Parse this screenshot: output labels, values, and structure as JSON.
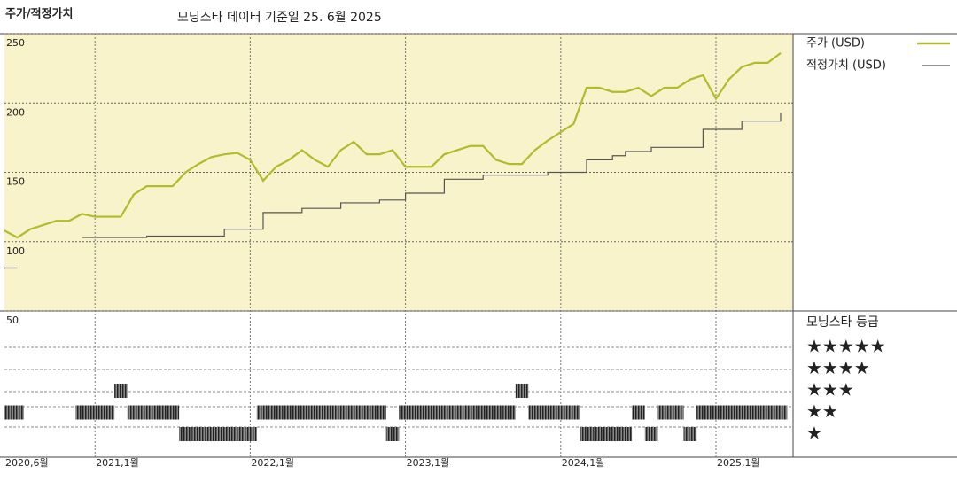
{
  "chart_data": {
    "type": "line",
    "title": "주가/적정가치",
    "subtitle": "모닝스타 데이터 기준일 25. 6월 2025",
    "x": [
      "2020-06",
      "2020-07",
      "2020-08",
      "2020-09",
      "2020-10",
      "2020-11",
      "2020-12",
      "2021-01",
      "2021-02",
      "2021-03",
      "2021-04",
      "2021-05",
      "2021-06",
      "2021-07",
      "2021-08",
      "2021-09",
      "2021-10",
      "2021-11",
      "2021-12",
      "2022-01",
      "2022-02",
      "2022-03",
      "2022-04",
      "2022-05",
      "2022-06",
      "2022-07",
      "2022-08",
      "2022-09",
      "2022-10",
      "2022-11",
      "2022-12",
      "2023-01",
      "2023-02",
      "2023-03",
      "2023-04",
      "2023-05",
      "2023-06",
      "2023-07",
      "2023-08",
      "2023-09",
      "2023-10",
      "2023-11",
      "2023-12",
      "2024-01",
      "2024-02",
      "2024-03",
      "2024-04",
      "2024-05",
      "2024-06",
      "2024-07",
      "2024-08",
      "2024-09",
      "2024-10",
      "2024-11",
      "2024-12",
      "2025-01",
      "2025-02",
      "2025-03",
      "2025-04",
      "2025-05",
      "2025-06"
    ],
    "series": [
      {
        "name": "주가 (USD)",
        "color": "#b3bb2c",
        "values": [
          108,
          103,
          109,
          112,
          115,
          115,
          120,
          118,
          118,
          118,
          134,
          140,
          140,
          140,
          150,
          156,
          161,
          163,
          164,
          159,
          144,
          154,
          159,
          166,
          159,
          154,
          166,
          172,
          163,
          163,
          166,
          154,
          154,
          154,
          163,
          166,
          169,
          169,
          159,
          156,
          156,
          166,
          173,
          179,
          185,
          211,
          211,
          208,
          208,
          211,
          205,
          211,
          211,
          217,
          220,
          203,
          217,
          226,
          229,
          229,
          236
        ]
      },
      {
        "name": "적정가치 (USD)",
        "color": "#555555",
        "step": true,
        "values": [
          81,
          81,
          null,
          null,
          null,
          null,
          103,
          103,
          103,
          103,
          103,
          104,
          104,
          104,
          104,
          104,
          104,
          109,
          109,
          109,
          121,
          121,
          121,
          124,
          124,
          124,
          128,
          128,
          128,
          130,
          130,
          135,
          135,
          135,
          145,
          145,
          145,
          148,
          148,
          148,
          148,
          148,
          150,
          150,
          150,
          159,
          159,
          162,
          165,
          165,
          168,
          168,
          168,
          168,
          181,
          181,
          181,
          187,
          187,
          187,
          193
        ]
      }
    ],
    "ylim": [
      50,
      250
    ],
    "yticks": [
      50,
      100,
      150,
      200,
      250
    ],
    "grid": true,
    "xticks": [
      {
        "value": "2020-06",
        "label": "2020,6월"
      },
      {
        "value": "2021-01",
        "label": "2021,1월"
      },
      {
        "value": "2022-01",
        "label": "2022,1월"
      },
      {
        "value": "2023-01",
        "label": "2023,1월"
      },
      {
        "value": "2024-01",
        "label": "2024,1월"
      },
      {
        "value": "2025-01",
        "label": "2025,1월"
      }
    ],
    "background": "#f8f3cb",
    "rating": {
      "title": "모닝스타 등급",
      "labels": [
        "★★★★★",
        "★★★★",
        "★★★",
        "★★",
        "★"
      ],
      "values": [
        2,
        2,
        null,
        null,
        null,
        null,
        2,
        2,
        2,
        3,
        2,
        2,
        2,
        2,
        1,
        1,
        1,
        1,
        1,
        1,
        2,
        2,
        2,
        2,
        2,
        2,
        2,
        2,
        2,
        2,
        1,
        2,
        2,
        2,
        2,
        2,
        2,
        2,
        2,
        2,
        3,
        2,
        2,
        2,
        2,
        1,
        1,
        1,
        1,
        2,
        1,
        2,
        2,
        1,
        2,
        2,
        2,
        2,
        2,
        2,
        2
      ]
    }
  }
}
